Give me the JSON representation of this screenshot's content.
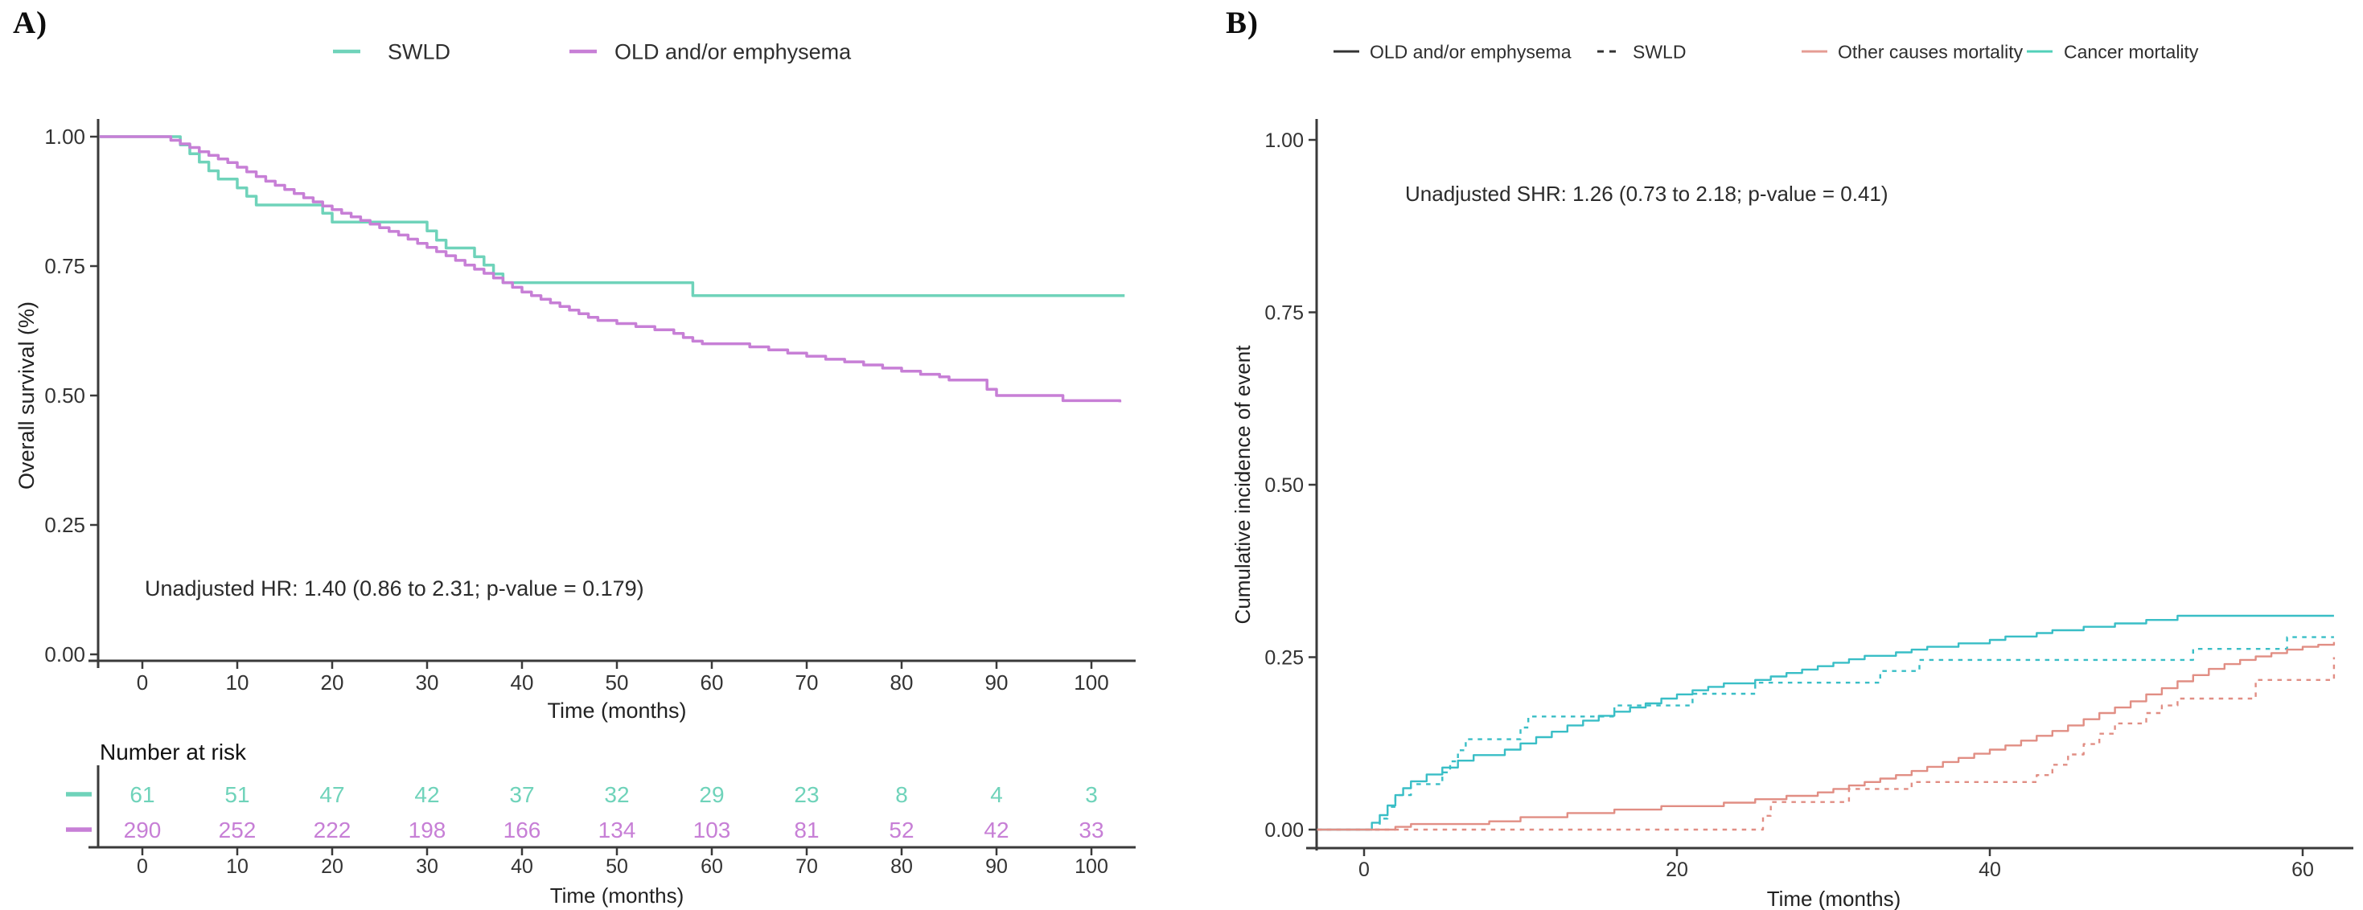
{
  "chart_data": [
    {
      "id": "A",
      "panel_label": "A)",
      "type": "line",
      "subtype": "kaplan-meier-step",
      "title": "",
      "xlabel": "Time (months)",
      "ylabel": "Overall survival (%)",
      "xlim": [
        -5,
        104
      ],
      "ylim": [
        -0.03,
        1.05
      ],
      "grid": false,
      "legend_position": "top",
      "xticks": [
        0,
        10,
        20,
        30,
        40,
        50,
        60,
        70,
        80,
        90,
        100
      ],
      "ytick_values": [
        1.0,
        0.75,
        0.5,
        0.25,
        0.0
      ],
      "ytick_labels": [
        "1.00",
        "0.75",
        "0.50",
        "0.25",
        "0.00"
      ],
      "annotation": {
        "text": "Unadjusted HR: 1.40 (0.86 to 2.31; p-value = 0.179)"
      },
      "legend": [
        {
          "label": "SWLD",
          "color": "#6FD3BA",
          "dash": "solid"
        },
        {
          "label": "OLD and/or emphysema",
          "color": "#C77FD6",
          "dash": "solid"
        }
      ],
      "series": [
        {
          "name": "SWLD",
          "color": "#6FD3BA",
          "dash": "solid",
          "points": [
            [
              -4.5,
              1
            ],
            [
              0,
              1
            ],
            [
              4,
              0.984
            ],
            [
              5,
              0.967
            ],
            [
              6,
              0.951
            ],
            [
              7,
              0.934
            ],
            [
              8,
              0.918
            ],
            [
              10,
              0.901
            ],
            [
              11,
              0.885
            ],
            [
              12,
              0.868
            ],
            [
              19,
              0.852
            ],
            [
              20,
              0.835
            ],
            [
              30,
              0.818
            ],
            [
              31,
              0.8
            ],
            [
              32,
              0.785
            ],
            [
              35,
              0.768
            ],
            [
              36,
              0.752
            ],
            [
              37,
              0.735
            ],
            [
              38,
              0.718
            ],
            [
              58,
              0.693
            ],
            [
              103.5,
              0.693
            ]
          ]
        },
        {
          "name": "OLD and/or emphysema",
          "color": "#C77FD6",
          "dash": "solid",
          "points": [
            [
              -4.5,
              1
            ],
            [
              3,
              0.993
            ],
            [
              4,
              0.986
            ],
            [
              5,
              0.979
            ],
            [
              6,
              0.971
            ],
            [
              7,
              0.964
            ],
            [
              8,
              0.957
            ],
            [
              9,
              0.95
            ],
            [
              10,
              0.941
            ],
            [
              11,
              0.932
            ],
            [
              12,
              0.923
            ],
            [
              13,
              0.914
            ],
            [
              14,
              0.906
            ],
            [
              15,
              0.898
            ],
            [
              16,
              0.89
            ],
            [
              17,
              0.882
            ],
            [
              18,
              0.874
            ],
            [
              19,
              0.866
            ],
            [
              20,
              0.859
            ],
            [
              21,
              0.852
            ],
            [
              22,
              0.845
            ],
            [
              23,
              0.838
            ],
            [
              24,
              0.831
            ],
            [
              25,
              0.824
            ],
            [
              26,
              0.817
            ],
            [
              27,
              0.81
            ],
            [
              28,
              0.802
            ],
            [
              29,
              0.794
            ],
            [
              30,
              0.786
            ],
            [
              31,
              0.778
            ],
            [
              32,
              0.77
            ],
            [
              33,
              0.761
            ],
            [
              34,
              0.752
            ],
            [
              35,
              0.744
            ],
            [
              36,
              0.736
            ],
            [
              37,
              0.727
            ],
            [
              38,
              0.718
            ],
            [
              39,
              0.709
            ],
            [
              40,
              0.7
            ],
            [
              41,
              0.693
            ],
            [
              42,
              0.686
            ],
            [
              43,
              0.679
            ],
            [
              44,
              0.672
            ],
            [
              45,
              0.665
            ],
            [
              46,
              0.658
            ],
            [
              47,
              0.651
            ],
            [
              48,
              0.645
            ],
            [
              50,
              0.639
            ],
            [
              52,
              0.633
            ],
            [
              54,
              0.627
            ],
            [
              56,
              0.62
            ],
            [
              57,
              0.612
            ],
            [
              58,
              0.605
            ],
            [
              59,
              0.6
            ],
            [
              64,
              0.594
            ],
            [
              66,
              0.588
            ],
            [
              68,
              0.582
            ],
            [
              70,
              0.576
            ],
            [
              72,
              0.57
            ],
            [
              74,
              0.565
            ],
            [
              76,
              0.559
            ],
            [
              78,
              0.553
            ],
            [
              80,
              0.547
            ],
            [
              82,
              0.541
            ],
            [
              84,
              0.536
            ],
            [
              85,
              0.53
            ],
            [
              89,
              0.512
            ],
            [
              90,
              0.5
            ],
            [
              96,
              0.5
            ],
            [
              97,
              0.49
            ],
            [
              103,
              0.487
            ]
          ]
        }
      ],
      "risk_table": {
        "title": "Number at risk",
        "xlabel": "Time (months)",
        "x": [
          0,
          10,
          20,
          30,
          40,
          50,
          60,
          70,
          80,
          90,
          100
        ],
        "rows": [
          {
            "name": "SWLD",
            "color": "#6FD3BA",
            "counts": [
              61,
              51,
              47,
              42,
              37,
              32,
              29,
              23,
              8,
              4,
              3
            ]
          },
          {
            "name": "OLD and/or emphysema",
            "color": "#C77FD6",
            "counts": [
              290,
              252,
              222,
              198,
              166,
              134,
              103,
              81,
              52,
              42,
              33
            ]
          }
        ]
      }
    },
    {
      "id": "B",
      "panel_label": "B)",
      "type": "line",
      "subtype": "cumulative-incidence-step",
      "title": "",
      "xlabel": "Time (months)",
      "ylabel": "Cumulative incidence of event",
      "xlim": [
        -3,
        63
      ],
      "ylim": [
        -0.02,
        1.05
      ],
      "grid": false,
      "legend_position": "top",
      "xticks": [
        0,
        20,
        40,
        60
      ],
      "ytick_values": [
        1.0,
        0.75,
        0.5,
        0.25,
        0.0
      ],
      "ytick_labels": [
        "1.00",
        "0.75",
        "0.50",
        "0.25",
        "0.00"
      ],
      "annotation": {
        "text": "Unadjusted SHR: 1.26 (0.73 to 2.18; p-value = 0.41)"
      },
      "legend": [
        {
          "label": "OLD and/or emphysema",
          "color": "#333333",
          "dash": "solid"
        },
        {
          "label": "SWLD",
          "color": "#333333",
          "dash": "dashed"
        },
        {
          "label": "Other causes mortality",
          "color": "#E59C93",
          "dash": "solid"
        },
        {
          "label": "Cancer mortality",
          "color": "#52D0B9",
          "dash": "solid"
        }
      ],
      "series": [
        {
          "name": "Cancer mortality - OLD and/or emphysema",
          "color": "#39BEC6",
          "dash": "solid",
          "points": [
            [
              -3,
              0
            ],
            [
              0,
              0
            ],
            [
              0.5,
              0.01
            ],
            [
              1,
              0.021
            ],
            [
              1.5,
              0.035
            ],
            [
              2,
              0.05
            ],
            [
              2.5,
              0.06
            ],
            [
              3,
              0.07
            ],
            [
              4,
              0.08
            ],
            [
              5,
              0.09
            ],
            [
              6,
              0.1
            ],
            [
              7,
              0.108
            ],
            [
              9,
              0.116
            ],
            [
              10,
              0.125
            ],
            [
              11,
              0.134
            ],
            [
              12,
              0.142
            ],
            [
              13,
              0.151
            ],
            [
              14,
              0.158
            ],
            [
              15,
              0.165
            ],
            [
              16,
              0.171
            ],
            [
              17,
              0.177
            ],
            [
              18,
              0.183
            ],
            [
              19,
              0.19
            ],
            [
              20,
              0.196
            ],
            [
              21,
              0.202
            ],
            [
              22,
              0.207
            ],
            [
              23,
              0.212
            ],
            [
              25,
              0.217
            ],
            [
              26,
              0.222
            ],
            [
              27,
              0.227
            ],
            [
              28,
              0.232
            ],
            [
              29,
              0.237
            ],
            [
              30,
              0.242
            ],
            [
              31,
              0.247
            ],
            [
              32,
              0.252
            ],
            [
              34,
              0.257
            ],
            [
              35,
              0.261
            ],
            [
              36,
              0.265
            ],
            [
              38,
              0.27
            ],
            [
              40,
              0.275
            ],
            [
              41,
              0.28
            ],
            [
              43,
              0.285
            ],
            [
              44,
              0.289
            ],
            [
              46,
              0.294
            ],
            [
              48,
              0.299
            ],
            [
              50,
              0.304
            ],
            [
              52,
              0.31
            ],
            [
              62,
              0.31
            ]
          ]
        },
        {
          "name": "Cancer mortality - SWLD",
          "color": "#39BEC6",
          "dash": "dashed",
          "points": [
            [
              -3,
              0
            ],
            [
              0,
              0
            ],
            [
              1,
              0.016
            ],
            [
              1.5,
              0.033
            ],
            [
              2,
              0.05
            ],
            [
              3,
              0.066
            ],
            [
              5,
              0.083
            ],
            [
              5.5,
              0.099
            ],
            [
              6,
              0.115
            ],
            [
              6.5,
              0.131
            ],
            [
              10,
              0.148
            ],
            [
              10.5,
              0.164
            ],
            [
              16,
              0.18
            ],
            [
              21,
              0.197
            ],
            [
              25,
              0.213
            ],
            [
              33,
              0.23
            ],
            [
              35.5,
              0.246
            ],
            [
              53,
              0.262
            ],
            [
              59,
              0.279
            ],
            [
              62,
              0.279
            ]
          ]
        },
        {
          "name": "Other causes mortality - OLD and/or emphysema",
          "color": "#E18E84",
          "dash": "solid",
          "points": [
            [
              -3,
              0
            ],
            [
              1,
              0
            ],
            [
              2,
              0.004
            ],
            [
              3,
              0.008
            ],
            [
              8,
              0.012
            ],
            [
              10,
              0.018
            ],
            [
              13,
              0.024
            ],
            [
              16,
              0.029
            ],
            [
              19,
              0.034
            ],
            [
              23,
              0.039
            ],
            [
              25,
              0.044
            ],
            [
              27,
              0.049
            ],
            [
              29,
              0.054
            ],
            [
              30,
              0.059
            ],
            [
              31,
              0.064
            ],
            [
              32,
              0.069
            ],
            [
              33,
              0.074
            ],
            [
              34,
              0.079
            ],
            [
              35,
              0.085
            ],
            [
              36,
              0.091
            ],
            [
              37,
              0.098
            ],
            [
              38,
              0.104
            ],
            [
              39,
              0.11
            ],
            [
              40,
              0.116
            ],
            [
              41,
              0.122
            ],
            [
              42,
              0.129
            ],
            [
              43,
              0.136
            ],
            [
              44,
              0.143
            ],
            [
              45,
              0.151
            ],
            [
              46,
              0.16
            ],
            [
              47,
              0.169
            ],
            [
              48,
              0.177
            ],
            [
              49,
              0.186
            ],
            [
              50,
              0.196
            ],
            [
              51,
              0.205
            ],
            [
              52,
              0.215
            ],
            [
              53,
              0.224
            ],
            [
              54,
              0.233
            ],
            [
              55,
              0.24
            ],
            [
              56,
              0.246
            ],
            [
              57,
              0.251
            ],
            [
              58,
              0.256
            ],
            [
              59,
              0.261
            ],
            [
              60,
              0.265
            ],
            [
              61,
              0.268
            ],
            [
              62,
              0.272
            ]
          ]
        },
        {
          "name": "Other causes mortality - SWLD",
          "color": "#E18E84",
          "dash": "dashed",
          "points": [
            [
              -3,
              0
            ],
            [
              25,
              0
            ],
            [
              25.5,
              0.02
            ],
            [
              26,
              0.04
            ],
            [
              31,
              0.059
            ],
            [
              35,
              0.069
            ],
            [
              43,
              0.079
            ],
            [
              44,
              0.094
            ],
            [
              45,
              0.109
            ],
            [
              46,
              0.124
            ],
            [
              47,
              0.139
            ],
            [
              48,
              0.154
            ],
            [
              50,
              0.169
            ],
            [
              51,
              0.18
            ],
            [
              52,
              0.19
            ],
            [
              56,
              0.19
            ],
            [
              57,
              0.217
            ],
            [
              61.5,
              0.217
            ],
            [
              62,
              0.25
            ]
          ]
        }
      ]
    }
  ]
}
